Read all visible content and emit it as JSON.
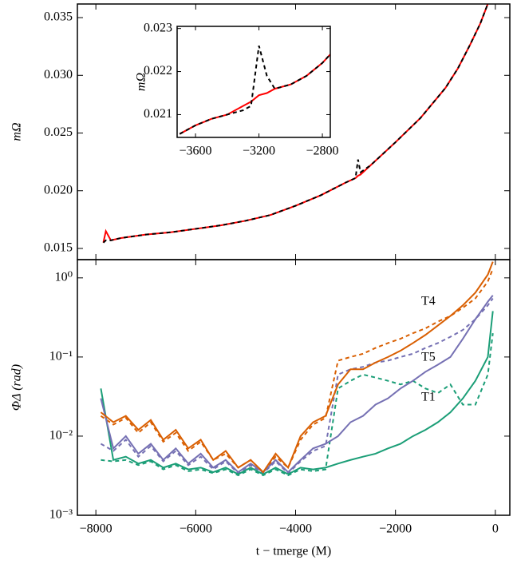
{
  "chart_data": [
    {
      "type": "line",
      "ylabel": "mΩ",
      "xlim": [
        -8370,
        290
      ],
      "xticks": [
        -8000,
        -6000,
        -4000,
        -2000,
        0
      ],
      "ylim": [
        0.01403,
        0.03618
      ],
      "yticks": [
        {
          "value": 0.015,
          "label": "0.015"
        },
        {
          "value": 0.02,
          "label": "0.020"
        },
        {
          "value": 0.025,
          "label": "0.025"
        },
        {
          "value": 0.03,
          "label": "0.030"
        },
        {
          "value": 0.035,
          "label": "0.035"
        }
      ],
      "x": [
        -7850,
        -7800,
        -7700,
        -7500,
        -7000,
        -6500,
        -6000,
        -5500,
        -5000,
        -4500,
        -4000,
        -3500,
        -3000,
        -2800,
        -2750,
        -2700,
        -2500,
        -2000,
        -1500,
        -1000,
        -750,
        -500,
        -300,
        -150
      ],
      "series": [
        {
          "color": "#ff0000",
          "dash": false,
          "values": [
            0.0155,
            0.0165,
            0.0157,
            0.0159,
            0.0162,
            0.0164,
            0.0167,
            0.017,
            0.0174,
            0.0179,
            0.0187,
            0.0196,
            0.0207,
            0.0211,
            0.0213,
            0.0214,
            0.0222,
            0.0242,
            0.0263,
            0.0289,
            0.0306,
            0.0327,
            0.0345,
            0.0362
          ]
        },
        {
          "color": "#000000",
          "dash": true,
          "values": [
            0.0155,
            0.0157,
            0.0157,
            0.0159,
            0.0162,
            0.0164,
            0.0167,
            0.017,
            0.0174,
            0.0179,
            0.0187,
            0.0196,
            0.0207,
            0.0211,
            0.0227,
            0.0216,
            0.0222,
            0.0242,
            0.0263,
            0.0289,
            0.0306,
            0.0327,
            0.0345,
            0.0362
          ]
        }
      ]
    },
    {
      "type": "line",
      "ylabel": "mΩ",
      "xlim": [
        -3716,
        -2750
      ],
      "xticks": [
        {
          "value": -3600,
          "label": "−3600"
        },
        {
          "value": -3200,
          "label": "−3200"
        },
        {
          "value": -2800,
          "label": "−2800"
        }
      ],
      "ylim": [
        0.02047,
        0.02305
      ],
      "yticks": [
        0.021,
        0.022,
        0.023
      ],
      "x": [
        -3700,
        -3600,
        -3500,
        -3400,
        -3300,
        -3250,
        -3200,
        -3150,
        -3100,
        -3000,
        -2900,
        -2800,
        -2750
      ],
      "series": [
        {
          "color": "#ff0000",
          "dash": false,
          "values": [
            0.02055,
            0.02075,
            0.0209,
            0.021,
            0.0212,
            0.0213,
            0.02145,
            0.0215,
            0.0216,
            0.0217,
            0.0219,
            0.0222,
            0.0224
          ]
        },
        {
          "color": "#000000",
          "dash": true,
          "values": [
            0.02055,
            0.02075,
            0.0209,
            0.021,
            0.0211,
            0.0212,
            0.0226,
            0.0219,
            0.0216,
            0.0217,
            0.0219,
            0.0222,
            0.0224
          ]
        }
      ]
    },
    {
      "type": "line",
      "log_y": true,
      "ylabel": "ΦΔ (rad)",
      "xlabel": "t − tmerge (M)",
      "xlim": [
        -8370,
        290
      ],
      "xticks": [
        {
          "value": -8000,
          "label": "−8000"
        },
        {
          "value": -6000,
          "label": "−6000"
        },
        {
          "value": -4000,
          "label": "−4000"
        },
        {
          "value": -2000,
          "label": "−2000"
        },
        0
      ],
      "ylim": [
        0.001,
        1.7
      ],
      "yticks": [
        {
          "value": 0.001,
          "label": "10⁻³"
        },
        {
          "value": 0.01,
          "label": "10⁻²"
        },
        {
          "value": 0.1,
          "label": "10⁻¹"
        },
        {
          "value": 1,
          "label": "10⁰"
        }
      ],
      "x": [
        -7900,
        -7650,
        -7400,
        -7150,
        -6900,
        -6650,
        -6400,
        -6150,
        -5900,
        -5650,
        -5400,
        -5150,
        -4900,
        -4650,
        -4400,
        -4150,
        -3900,
        -3650,
        -3400,
        -3150,
        -2900,
        -2650,
        -2400,
        -2150,
        -1900,
        -1650,
        -1400,
        -1150,
        -900,
        -650,
        -400,
        -150,
        -50
      ],
      "series": [
        {
          "color": "#1b9e77",
          "dash": true,
          "values": [
            0.005,
            0.0048,
            0.005,
            0.0043,
            0.0048,
            0.0038,
            0.0043,
            0.0036,
            0.0038,
            0.0034,
            0.0038,
            0.0032,
            0.0038,
            0.0032,
            0.0038,
            0.0032,
            0.0038,
            0.0036,
            0.0038,
            0.04,
            0.05,
            0.06,
            0.055,
            0.05,
            0.045,
            0.05,
            0.04,
            0.035,
            0.045,
            0.025,
            0.025,
            0.06,
            0.2
          ]
        },
        {
          "color": "#7570b3",
          "dash": true,
          "values": [
            0.008,
            0.0065,
            0.009,
            0.0055,
            0.0075,
            0.0048,
            0.0065,
            0.0043,
            0.0055,
            0.0038,
            0.0048,
            0.0034,
            0.0043,
            0.0034,
            0.0048,
            0.0034,
            0.0048,
            0.0065,
            0.0075,
            0.06,
            0.07,
            0.075,
            0.085,
            0.09,
            0.1,
            0.11,
            0.13,
            0.15,
            0.18,
            0.22,
            0.3,
            0.45,
            0.55
          ]
        },
        {
          "color": "#d95f02",
          "dash": true,
          "values": [
            0.018,
            0.014,
            0.017,
            0.011,
            0.015,
            0.0085,
            0.011,
            0.0065,
            0.0085,
            0.005,
            0.006,
            0.004,
            0.005,
            0.0035,
            0.0055,
            0.004,
            0.009,
            0.014,
            0.017,
            0.09,
            0.1,
            0.11,
            0.13,
            0.15,
            0.17,
            0.2,
            0.23,
            0.28,
            0.33,
            0.42,
            0.55,
            0.9,
            1.3
          ]
        },
        {
          "name": "T1",
          "color": "#1b9e77",
          "dash": false,
          "values": [
            0.04,
            0.005,
            0.0055,
            0.0045,
            0.005,
            0.004,
            0.0045,
            0.0038,
            0.004,
            0.0035,
            0.004,
            0.0033,
            0.004,
            0.0033,
            0.004,
            0.0033,
            0.004,
            0.0038,
            0.004,
            0.0045,
            0.005,
            0.0055,
            0.006,
            0.007,
            0.008,
            0.01,
            0.012,
            0.015,
            0.02,
            0.03,
            0.05,
            0.1,
            0.38
          ]
        },
        {
          "name": "T5",
          "color": "#7570b3",
          "dash": false,
          "values": [
            0.03,
            0.007,
            0.01,
            0.006,
            0.008,
            0.005,
            0.007,
            0.0045,
            0.006,
            0.004,
            0.005,
            0.0035,
            0.0045,
            0.0035,
            0.005,
            0.0035,
            0.005,
            0.007,
            0.008,
            0.01,
            0.015,
            0.018,
            0.025,
            0.03,
            0.04,
            0.05,
            0.065,
            0.08,
            0.1,
            0.17,
            0.3,
            0.5,
            0.6
          ]
        },
        {
          "name": "T4",
          "color": "#d95f02",
          "dash": false,
          "values": [
            0.02,
            0.015,
            0.018,
            0.012,
            0.016,
            0.009,
            0.012,
            0.007,
            0.009,
            0.005,
            0.0065,
            0.004,
            0.005,
            0.0035,
            0.006,
            0.004,
            0.01,
            0.015,
            0.018,
            0.045,
            0.07,
            0.07,
            0.085,
            0.1,
            0.12,
            0.15,
            0.19,
            0.25,
            0.33,
            0.45,
            0.65,
            1.1,
            1.6
          ]
        }
      ]
    }
  ]
}
